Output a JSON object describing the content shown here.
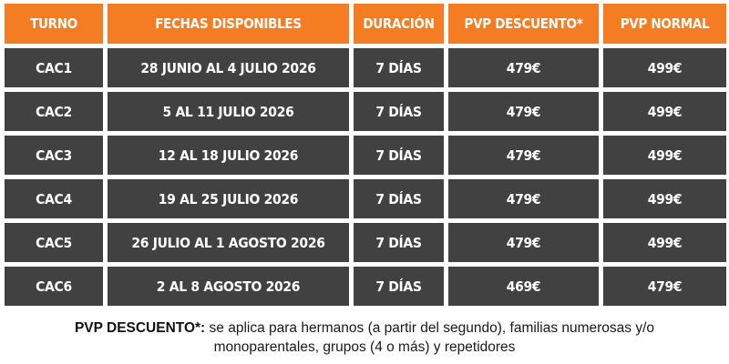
{
  "header": {
    "col_turno": "TURNO",
    "col_fechas": "FECHAS DISPONIBLES",
    "col_duracion": "DURACIÓN",
    "col_descuento": "PVP DESCUENTO*",
    "col_normal": "PVP NORMAL"
  },
  "rows": [
    {
      "turno": "CAC1",
      "fechas": "28 JUNIO AL 4 JULIO 2026",
      "duracion": "7 DÍAS",
      "descuento": "479€",
      "normal": "499€"
    },
    {
      "turno": "CAC2",
      "fechas": "5 AL 11 JULIO 2026",
      "duracion": "7 DÍAS",
      "descuento": "479€",
      "normal": "499€"
    },
    {
      "turno": "CAC3",
      "fechas": "12 AL 18 JULIO 2026",
      "duracion": "7 DÍAS",
      "descuento": "479€",
      "normal": "499€"
    },
    {
      "turno": "CAC4",
      "fechas": "19 AL 25 JULIO 2026",
      "duracion": "7 DÍAS",
      "descuento": "479€",
      "normal": "499€"
    },
    {
      "turno": "CAC5",
      "fechas": "26 JULIO AL 1 AGOSTO 2026",
      "duracion": "7 DÍAS",
      "descuento": "479€",
      "normal": "499€"
    },
    {
      "turno": "CAC6",
      "fechas": "2 AL 8 AGOSTO 2026",
      "duracion": "7 DÍAS",
      "descuento": "469€",
      "normal": "479€"
    }
  ],
  "note": {
    "label": "PVP DESCUENTO*:",
    "line1": " se aplica para hermanos (a partir del segundo), familias numerosas y/o",
    "line2": "monoparentales, grupos (4 o más) y repetidores"
  },
  "colors": {
    "header_bg": "#f47c22",
    "row_bg": "#414141",
    "text_light": "#ffffff"
  }
}
